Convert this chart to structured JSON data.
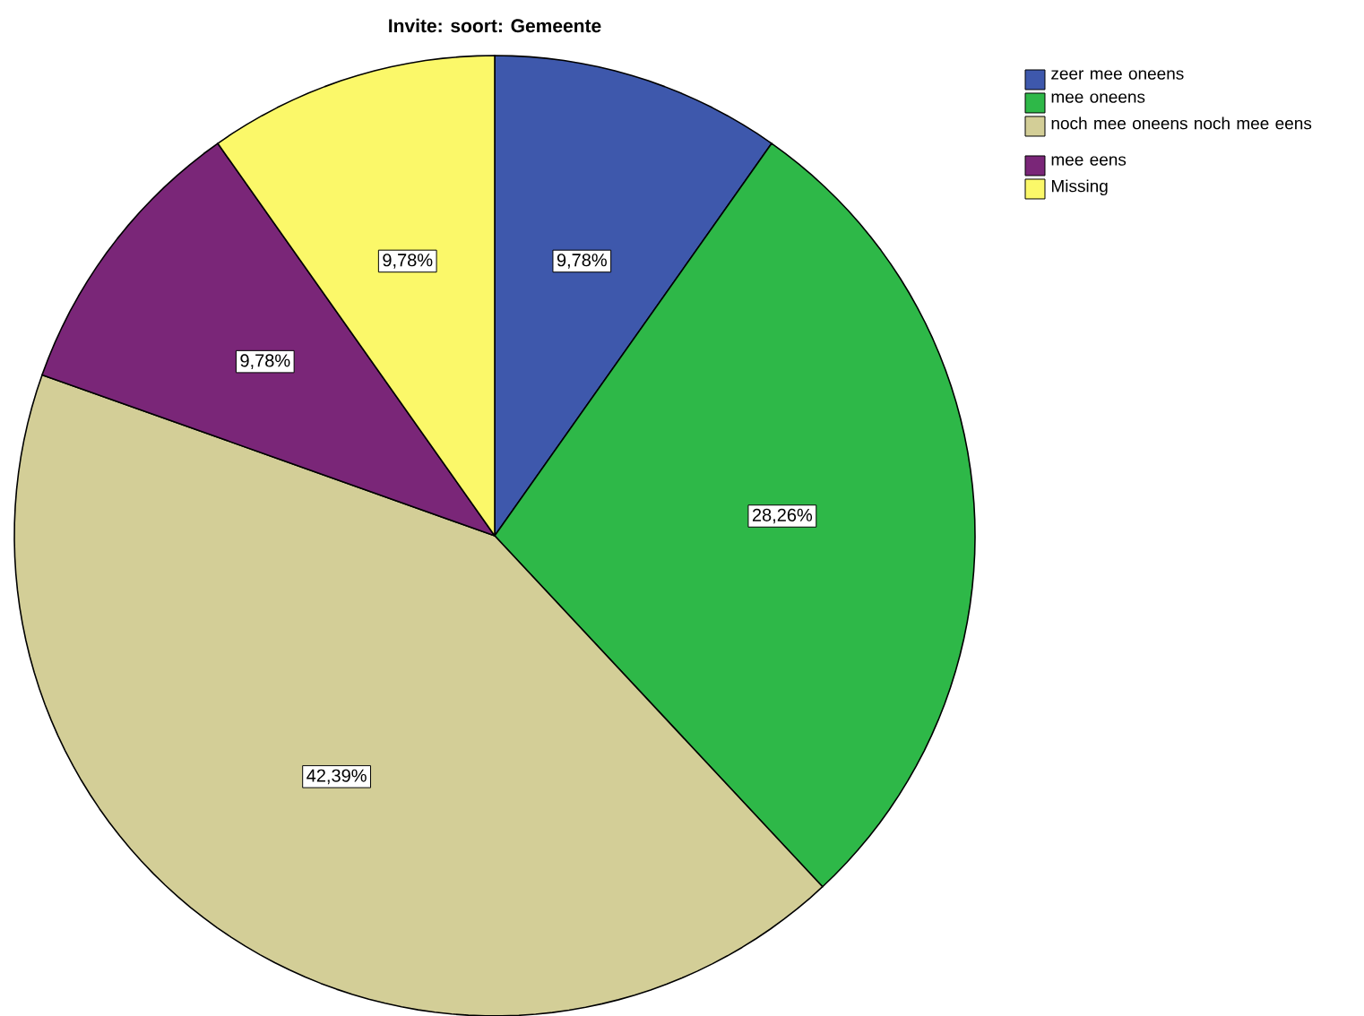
{
  "chart_data": {
    "type": "pie",
    "title": "Invite: soort: Gemeente",
    "categories": [
      "zeer mee oneens",
      "mee oneens",
      "noch mee oneens noch mee eens",
      "mee eens",
      "Missing"
    ],
    "values": [
      9.78,
      28.26,
      42.39,
      9.78,
      9.78
    ],
    "value_labels": [
      "9,78%",
      "28,26%",
      "42,39%",
      "9,78%",
      "9,78%"
    ],
    "colors": [
      "#3e58ac",
      "#2eb848",
      "#d3ce97",
      "#7a2678",
      "#fbf869"
    ],
    "legend": "top right"
  }
}
